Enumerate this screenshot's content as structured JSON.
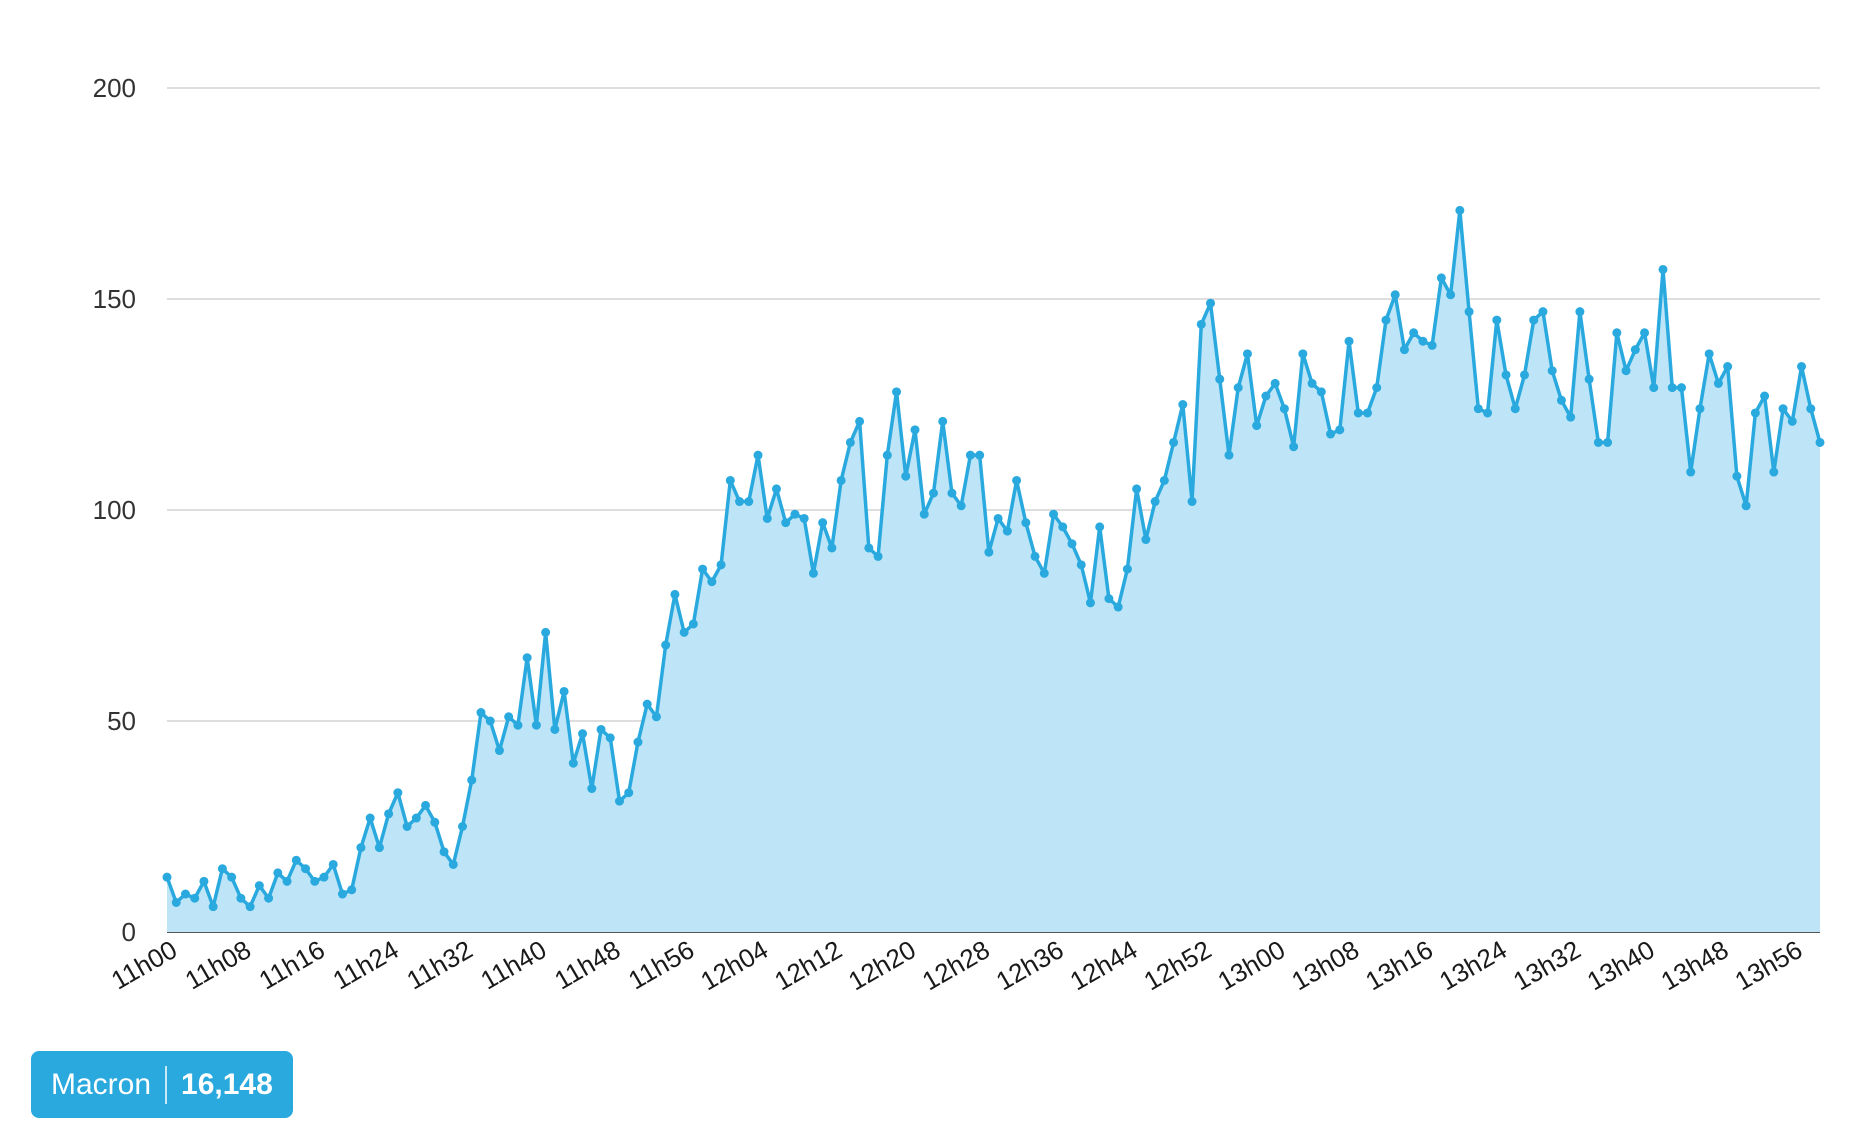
{
  "chart_data": {
    "type": "area",
    "y_ticks": [
      0,
      50,
      100,
      150,
      200
    ],
    "ylim": [
      0,
      200
    ],
    "x_tick_labels": [
      "11h00",
      "11h08",
      "11h16",
      "11h24",
      "11h32",
      "11h40",
      "11h48",
      "11h56",
      "12h04",
      "12h12",
      "12h20",
      "12h28",
      "12h36",
      "12h44",
      "12h52",
      "13h00",
      "13h08",
      "13h16",
      "13h24",
      "13h32",
      "13h40",
      "13h48",
      "13h56"
    ],
    "x_tick_minutes_interval": 8,
    "x_range_minutes": [
      0,
      179
    ],
    "grid": true,
    "series": [
      {
        "name": "Macron",
        "total": "16,148",
        "values": [
          13,
          7,
          9,
          8,
          12,
          6,
          15,
          13,
          8,
          6,
          11,
          8,
          14,
          12,
          17,
          15,
          12,
          13,
          16,
          9,
          10,
          20,
          27,
          20,
          28,
          33,
          25,
          27,
          30,
          26,
          19,
          16,
          25,
          36,
          52,
          50,
          43,
          51,
          49,
          65,
          49,
          71,
          48,
          57,
          40,
          47,
          34,
          48,
          46,
          31,
          33,
          45,
          54,
          51,
          68,
          80,
          71,
          73,
          86,
          83,
          87,
          107,
          102,
          102,
          113,
          98,
          105,
          97,
          99,
          98,
          85,
          97,
          91,
          107,
          116,
          121,
          91,
          89,
          113,
          128,
          108,
          119,
          99,
          104,
          121,
          104,
          101,
          113,
          113,
          90,
          98,
          95,
          107,
          97,
          89,
          85,
          99,
          96,
          92,
          87,
          78,
          96,
          79,
          77,
          86,
          105,
          93,
          102,
          107,
          116,
          125,
          102,
          144,
          149,
          131,
          113,
          129,
          137,
          120,
          127,
          130,
          124,
          115,
          137,
          130,
          128,
          118,
          119,
          140,
          123,
          123,
          129,
          145,
          151,
          138,
          142,
          140,
          139,
          155,
          151,
          171,
          147,
          124,
          123,
          145,
          132,
          124,
          132,
          145,
          147,
          133,
          126,
          122,
          147,
          131,
          116,
          116,
          142,
          133,
          138,
          142,
          129,
          157,
          129,
          129,
          109,
          124,
          137,
          130,
          134,
          108,
          101,
          123,
          127,
          109,
          124,
          121,
          134,
          124,
          116
        ]
      }
    ],
    "colors": {
      "line": "#2aa9df",
      "fill": "#bde5f7",
      "grid": "#d4d4d4",
      "legend_bg": "#2aa9df"
    }
  }
}
